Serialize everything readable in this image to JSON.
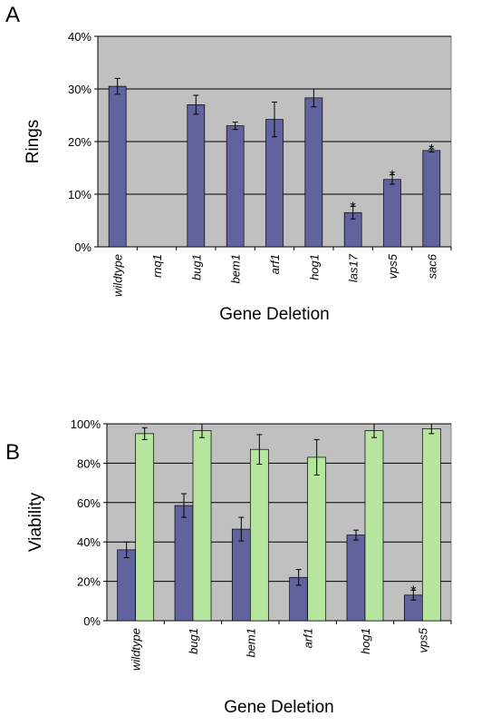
{
  "chart_data": [
    {
      "type": "bar",
      "panel": "A",
      "ylabel": "Rings",
      "xlabel": "Gene Deletion",
      "categories": [
        "wildtype",
        "rnq1",
        "bug1",
        "bem1",
        "arf1",
        "hog1",
        "las17",
        "vps5",
        "sac6"
      ],
      "series": [
        {
          "color": "#62629e",
          "values": [
            30.5,
            0,
            27,
            23,
            24.2,
            28.3,
            6.5,
            12.8,
            18.3
          ],
          "errors": [
            1.5,
            null,
            1.8,
            0.7,
            3.3,
            1.7,
            1.2,
            0.9,
            0.3
          ]
        }
      ],
      "significance": [
        null,
        null,
        null,
        null,
        null,
        null,
        "*",
        "*",
        "*"
      ],
      "ylim": [
        0,
        40
      ],
      "yticks": [
        {
          "value": 0,
          "label": "0%"
        },
        {
          "value": 10,
          "label": "10%"
        },
        {
          "value": 20,
          "label": "20%"
        },
        {
          "value": 30,
          "label": "30%"
        },
        {
          "value": 40,
          "label": "40%"
        }
      ],
      "grid": true
    },
    {
      "type": "bar",
      "panel": "B",
      "ylabel": "Viability",
      "xlabel": "Gene Deletion",
      "categories": [
        "wildtype",
        "bug1",
        "bem1",
        "arf1",
        "hog1",
        "vps5"
      ],
      "series": [
        {
          "color": "#62629e",
          "values": [
            36,
            58.5,
            46.5,
            22,
            43.5,
            13
          ],
          "errors": [
            4,
            6,
            6,
            4,
            2.5,
            2.5
          ]
        },
        {
          "color": "#b6e69e",
          "values": [
            95,
            96.5,
            87,
            83,
            96.5,
            97.5
          ],
          "errors": [
            3,
            3.5,
            7.5,
            9,
            3.5,
            2.5
          ]
        }
      ],
      "significance": [
        null,
        null,
        null,
        null,
        null,
        "*"
      ],
      "ylim": [
        0,
        100
      ],
      "yticks": [
        {
          "value": 0,
          "label": "0%"
        },
        {
          "value": 20,
          "label": "20%"
        },
        {
          "value": 40,
          "label": "40%"
        },
        {
          "value": 60,
          "label": "60%"
        },
        {
          "value": 80,
          "label": "80%"
        },
        {
          "value": 100,
          "label": "100%"
        }
      ],
      "grid": true
    }
  ]
}
